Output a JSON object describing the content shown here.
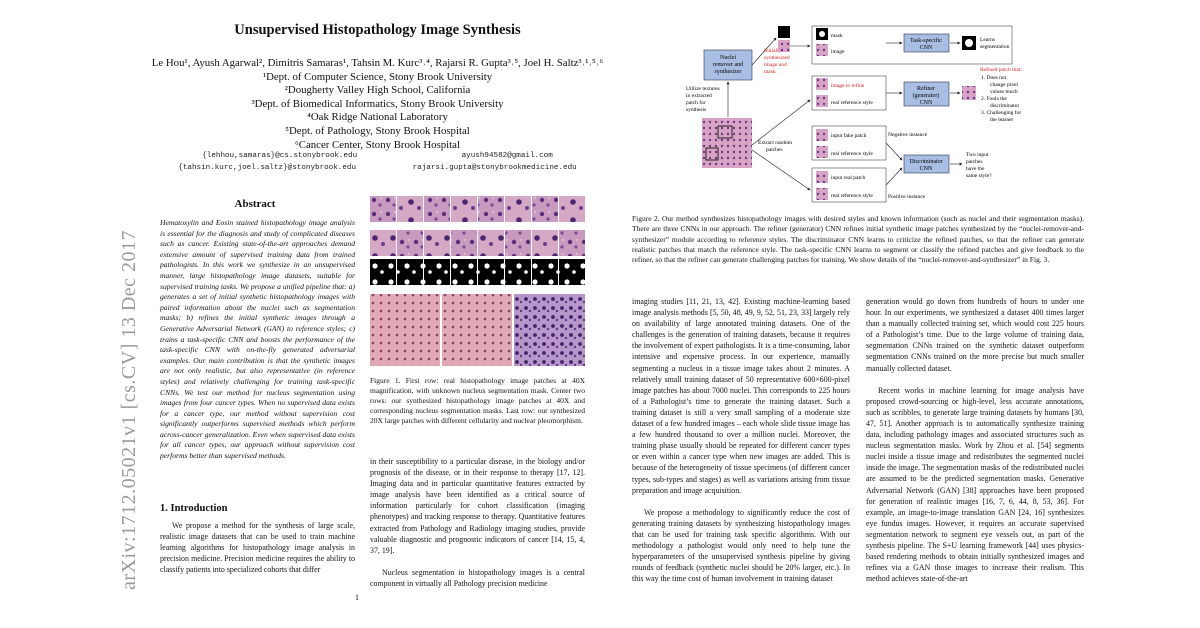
{
  "arxiv_id": "arXiv:1712.05021v1  [cs.CV]  13 Dec 2017",
  "title": "Unsupervised Histopathology Image Synthesis",
  "authors": {
    "names": "Le Hou¹, Ayush Agarwal², Dimitris Samaras¹, Tahsin M. Kurc³˒⁴, Rajarsi R. Gupta³˒⁵, Joel H. Saltz³˒¹˒⁵˒⁶",
    "affiliations": [
      "¹Dept. of Computer Science, Stony Brook University",
      "²Dougherty Valley High School, California",
      "³Dept. of Biomedical Informatics, Stony Brook University",
      "⁴Oak Ridge National Laboratory",
      "⁵Dept. of Pathology, Stony Brook Hospital",
      "⁶Cancer Center, Stony Brook Hospital"
    ],
    "emails": [
      "{lehhou,samaras}@cs.stonybrook.edu",
      "ayush94582@gmail.com",
      "{tahsin.kurc,joel.saltz}@stonybrook.edu",
      "rajarsi.gupta@stonybrookmedicine.edu"
    ]
  },
  "abstract_heading": "Abstract",
  "abstract": "Hematoxylin and Eosin stained histopathology image analysis is essential for the diagnosis and study of complicated diseases such as cancer. Existing state-of-the-art approaches demand extensive amount of supervised training data from trained pathologists. In this work we synthesize in an unsupervised manner, large histopathology image datasets, suitable for supervised training tasks. We propose a unified pipeline that: a) generates a set of initial synthetic histopathology images with paired information about the nuclei such as segmentation masks; b) refines the initial synthetic images through a Generative Adversarial Network (GAN) to reference styles; c) trains a task-specific CNN and boosts the performance of the task-specific CNN with on-the-fly generated adversarial examples. Our main contribution is that the synthetic images are not only realistic, but also representative (in reference styles) and relatively challenging for training task-specific CNNs. We test our method for nucleus segmentation using images from four cancer types. When no supervised data exists for a cancer type, our method without supervision cost significantly outperforms supervised methods which perform across-cancer generalization. Even when supervised data exists for all cancer types, our approach without supervision cost performs better than supervised methods.",
  "section1_heading": "1. Introduction",
  "intro_p1": "We propose a method for the synthesis of large scale, realistic image datasets that can be used to train machine learning algorithms for histopathology image analysis in precision medicine. Precision medicine requires the ability to classify patients into specialized cohorts that differ",
  "page_number": "1",
  "figure1_caption": "Figure 1. First row: real histopathology image patches at 40X magnification, with unknown nucleus segmentation mask. Center two rows: our synthesized histopathology image patches at 40X and corresponding nucleus segmentation masks. Last row: our synthesized 20X large patches with different cellularity and nuclear pleomorphism.",
  "col2_p1": "in their susceptibility to a particular disease, in the biology and/or prognosis of the disease, or in their response to therapy [17, 12]. Imaging data and in particular quantitative features extracted by image analysis have been identified as a critical source of information particularly for cohort classification (imaging phenotypes) and tracking response to therapy. Quantitative features extracted from Pathology and Radiology imaging studies, provide valuable diagnostic and prognostic indicators of cancer [14, 15, 4, 37, 19].",
  "col2_p2": "Nucleus segmentation in histopathology images is a central component in virtually all Pathology precision medicine",
  "figure2": {
    "nuclei_box": "Nuclei remover and synthesizer",
    "initial_label": "Initially synthesized image and mask",
    "mask_label": "mask",
    "image_label": "image",
    "task_cnn": "Task-specific CNN",
    "learns_seg": "Learns segmentation",
    "image_to_refine": "image to refine",
    "real_ref_style": "real reference style",
    "refiner_cnn": "Refiner (generator) CNN",
    "refined_patch_title": "Refined patch that:",
    "refined_points": [
      "1.  Does not change pixel values much",
      "2.  Fools the discriminator",
      "3.  Challenging for the learner"
    ],
    "utilize": "Utilize textures in extracted patch for synthesis",
    "extract": "Extract random patches",
    "input_fake": "input fake patch",
    "real_ref_style2": "real reference style",
    "negative": "Negative instance",
    "disc_cnn": "Discriminator CNN",
    "two_input": "Two input patches have the same style?",
    "input_real": "input real patch",
    "real_ref_style3": "real reference style",
    "positive": "Positive instance"
  },
  "figure2_caption": "Figure 2. Our method synthesizes histopathology images with desired styles and known information (such as nuclei and their segmentation masks). There are three CNNs in our approach. The refiner (generator) CNN refines initial synthetic image patches synthesized by the “nuclei-remover-and-synthesizer” module according to reference styles. The discriminator CNN learns to criticize the refined patches, so that the refiner can generate realistic patches that match the reference style. The task-specific CNN learns to segment or classify the refined patches and give feedback to the refiner, so that the refiner can generate challenging patches for training. We show details of the “nuclei-remover-and-synthesizer” in Fig. 3.",
  "col3_p1": "imaging studies [11, 21, 13, 42]. Existing machine-learning based image analysis methods [5, 50, 48, 49, 9, 52, 51, 23, 33] largely rely on availability of large annotated training datasets. One of the challenges is the generation of training datasets, because it requires the involvement of expert pathologists. It is a time-consuming, labor intensive and expensive process. In our experience, manually segmenting a nucleus in a tissue image takes about 2 minutes. A relatively small training dataset of 50 representative 600×600-pixel image patches has about 7000 nuclei. This corresponds to 225 hours of a Pathologist’s time to generate the training dataset. Such a training dataset is still a very small sampling of a moderate size dataset of a few hundred images – each whole slide tissue image has a few hundred thousand to over a million nuclei. Moreover, the training phase usually should be repeated for different cancer types or even within a cancer type when new images are added. This is because of the heterogeneity of tissue specimens (of different cancer types, sub-types and stages) as well as variations arising from tissue preparation and image acquisition.",
  "col3_p2": "We propose a methodology to significantly reduce the cost of generating training datasets by synthesizing histopathology images that can be used for training task specific algorithms. With our methodology a pathologist would only need to help tune the hyperparameters of the unsupervised synthesis pipeline by giving rounds of feedback (synthetic nuclei should be 20% larger, etc.). In this way the time cost of human involvement in training dataset",
  "col4_p1": "generation would go down from hundreds of hours to under one hour. In our experiments, we synthesized a dataset 400 times larger than a manually collected training set, which would cost 225 hours of a Pathologist’s time. Due to the large volume of training data, segmentation CNNs trained on the synthetic dataset outperform segmentation CNNs trained on the more precise but much smaller manually collected dataset.",
  "col4_p2": "Recent works in machine learning for image analysis have proposed crowd-sourcing or high-level, less accurate annotations, such as scribbles, to generate large training datasets by humans [30, 47, 51]. Another approach is to automatically synthesize training data, including pathology images and associated structures such as nucleus segmentation masks. Work by Zhou et al. [54] segments nuclei inside a tissue image and redistributes the segmented nuclei inside the image. The segmentation masks of the redistributed nuclei are assumed to be the predicted segmentation masks. Generative Adversarial Network (GAN) [38] approaches have been proposed for generation of realistic images [16, 7, 6, 44, 8, 53, 36]. For example, an image-to-image translation GAN [24, 16] synthesizes eye fundus images. However, it requires an accurate supervised segmentation network to segment eye vessels out, as part of the synthesis pipeline. The S+U learning framework [44] uses physics-based rendering methods to obtain initially synthesized images and refines via a GAN those images to increase their realism. This method achieves state-of-the-art"
}
